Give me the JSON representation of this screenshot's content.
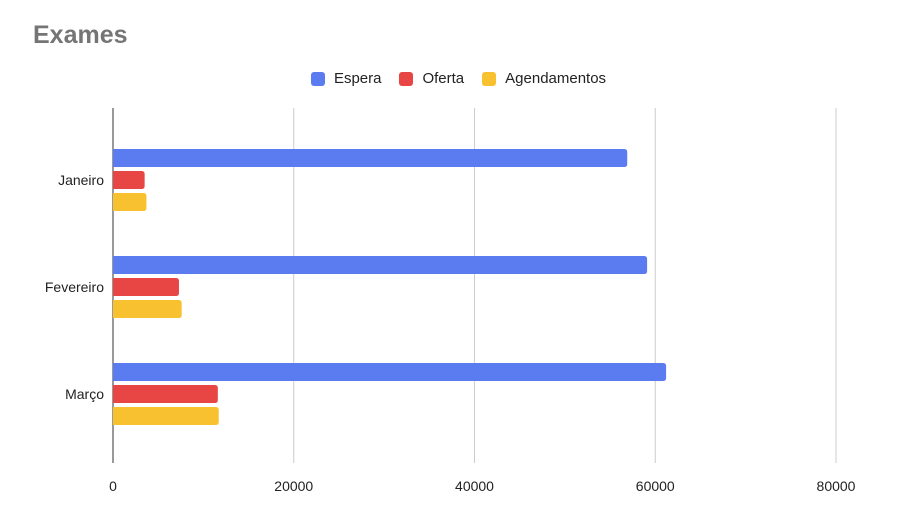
{
  "chart_data": {
    "type": "bar",
    "orientation": "horizontal",
    "title": "Exames",
    "categories": [
      "Janeiro",
      "Fevereiro",
      "Março"
    ],
    "series": [
      {
        "name": "Espera",
        "color": "#5b7cf0",
        "values": [
          56900,
          59100,
          61200
        ]
      },
      {
        "name": "Oferta",
        "color": "#e84545",
        "values": [
          3500,
          7300,
          11600
        ]
      },
      {
        "name": "Agendamentos",
        "color": "#f8c12f",
        "values": [
          3700,
          7600,
          11700
        ]
      }
    ],
    "x_ticks": [
      "0",
      "20000",
      "40000",
      "60000",
      "80000"
    ],
    "xlim": [
      0,
      80000
    ],
    "grid": true,
    "legend_position": "top"
  }
}
